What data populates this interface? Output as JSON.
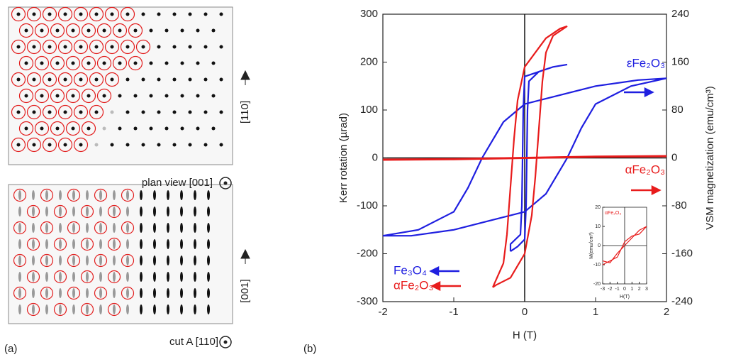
{
  "chart_data": [
    {
      "type": "line",
      "x_label": "H (T)",
      "y_label": "Kerr rotation (µrad)",
      "y2_label": "VSM magnetization (emu/cm³)",
      "xlim": [
        -2,
        2
      ],
      "xticks": [
        -2,
        -1,
        0,
        1,
        2
      ],
      "ylim": [
        -300,
        300
      ],
      "yticks": [
        -300,
        -200,
        -100,
        0,
        100,
        200,
        300
      ],
      "y2lim": [
        -240,
        240
      ],
      "y2ticks": [
        -240,
        -160,
        -80,
        0,
        80,
        160,
        240
      ],
      "series": [
        {
          "name": "εFe₂O₃",
          "color": "#1f1fe0",
          "axis": "y2",
          "x": [
            -2,
            -1.6,
            -1,
            -0.5,
            0,
            0.3,
            0.5,
            0.6,
            0.8,
            1.0,
            1.5,
            2,
            1.6,
            1,
            0.5,
            0,
            -0.3,
            -0.5,
            -0.6,
            -0.8,
            -1.0,
            -1.5,
            -2
          ],
          "values": [
            -130,
            -130,
            -120,
            -105,
            -90,
            -60,
            -20,
            0,
            50,
            90,
            120,
            133,
            130,
            120,
            105,
            90,
            60,
            20,
            0,
            -50,
            -90,
            -120,
            -130
          ]
        },
        {
          "name": "Fe₃O₄",
          "color": "#1f1fe0",
          "x": [
            -0.2,
            -0.1,
            0,
            0.02,
            0.03,
            0.04,
            0.06,
            0.2,
            0.4,
            0.6,
            0.4,
            0,
            -0.02,
            -0.03,
            -0.04,
            -0.06,
            -0.2,
            -0.2
          ],
          "values": [
            -195,
            -185,
            -170,
            -100,
            0,
            100,
            160,
            180,
            190,
            195,
            190,
            170,
            100,
            0,
            -100,
            -160,
            -180,
            -195
          ]
        },
        {
          "name": "αFe₂O₃",
          "color": "#e81c1c",
          "axis": "y2",
          "x": [
            -2,
            -1,
            0,
            1,
            2
          ],
          "values": [
            -3,
            -2,
            0,
            2,
            3
          ]
        },
        {
          "name": "αFe₂O₃",
          "color": "#e81c1c",
          "x": [
            -0.45,
            -0.4,
            -0.2,
            0,
            0.1,
            0.15,
            0.2,
            0.25,
            0.3,
            0.4,
            0.6,
            0.5,
            0.3,
            0.2,
            0,
            -0.1,
            -0.15,
            -0.2,
            -0.25,
            -0.3,
            -0.45
          ],
          "values": [
            -270,
            -265,
            -250,
            -200,
            -120,
            -40,
            60,
            160,
            220,
            255,
            275,
            270,
            250,
            230,
            190,
            120,
            40,
            -60,
            -160,
            -220,
            -270
          ]
        }
      ]
    },
    {
      "type": "line",
      "title": "αFe₂O₃",
      "x_label": "H(T)",
      "y_label": "M(emu/cm³)",
      "xlim": [
        -3,
        3
      ],
      "xticks": [
        -3,
        -2,
        -1,
        0,
        1,
        2,
        3
      ],
      "ylim": [
        -20,
        20
      ],
      "yticks": [
        -20,
        -10,
        0,
        10,
        20
      ],
      "series": [
        {
          "color": "#e81c1c",
          "x": [
            -3,
            -2,
            -1,
            0,
            1,
            2,
            3,
            2,
            1,
            0,
            -1,
            -2,
            -3
          ],
          "values": [
            -10,
            -8,
            -6,
            2,
            5,
            6,
            10,
            8,
            4,
            0,
            -4,
            -9,
            -8
          ]
        }
      ]
    }
  ],
  "figure_a": {
    "top_caption": "plan view [001]",
    "top_axis": "[110]",
    "bottom_caption": "cut A [110]",
    "bottom_axis": "[001]"
  },
  "panel_labels": [
    "(a)",
    "(b)"
  ]
}
